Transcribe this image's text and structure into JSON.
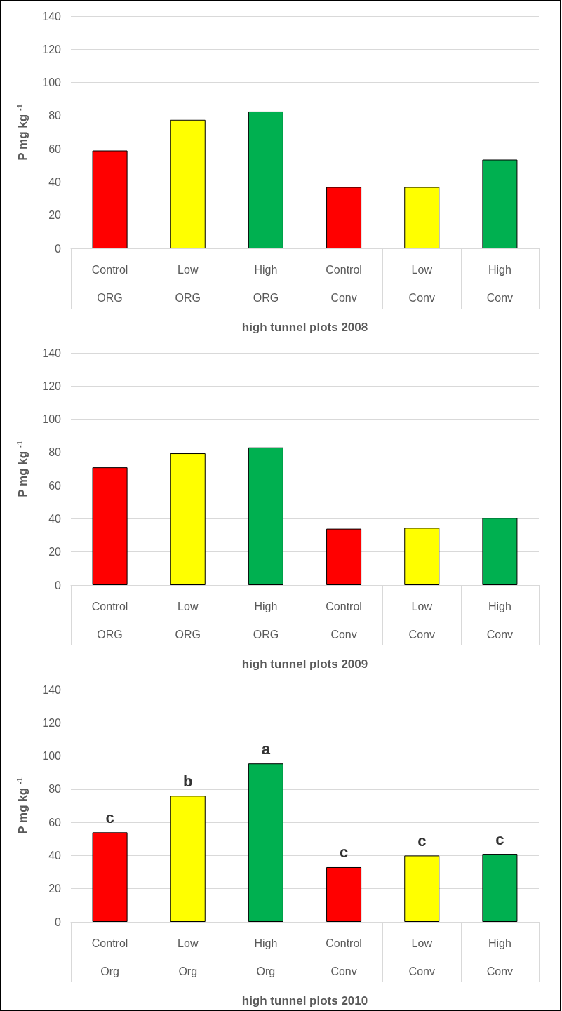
{
  "chart_data": [
    {
      "type": "bar",
      "xlabel": "high tunnel plots 2008",
      "ylabel": "P mg kg$^{-1}$",
      "categories": [
        "Control\nORG",
        "Low\nORG",
        "High\nORG",
        "Control\nConv",
        "Low\nConv",
        "High\nConv"
      ],
      "values": [
        59,
        77.5,
        82.5,
        37,
        37,
        53.5
      ],
      "colors": [
        "#ff0000",
        "#ffff00",
        "#00b050",
        "#ff0000",
        "#ffff00",
        "#00b050"
      ],
      "ylim": [
        0,
        140
      ],
      "yticks": [
        0,
        20,
        40,
        60,
        80,
        100,
        120,
        140
      ],
      "grid": "y"
    },
    {
      "type": "bar",
      "xlabel": "high tunnel plots 2009",
      "ylabel": "P mg kg$^{-1}$",
      "categories": [
        "Control\nORG",
        "Low\nORG",
        "High\nORG",
        "Control\nConv",
        "Low\nConv",
        "High\nConv"
      ],
      "values": [
        71,
        79.5,
        83,
        34,
        34.5,
        40.5
      ],
      "colors": [
        "#ff0000",
        "#ffff00",
        "#00b050",
        "#ff0000",
        "#ffff00",
        "#00b050"
      ],
      "ylim": [
        0,
        140
      ],
      "yticks": [
        0,
        20,
        40,
        60,
        80,
        100,
        120,
        140
      ],
      "grid": "y"
    },
    {
      "type": "bar",
      "xlabel": "high tunnel plots 2010",
      "ylabel": "P mg kg$^{-1}$",
      "categories": [
        "Control\nOrg",
        "Low\nOrg",
        "High\nOrg",
        "Control\nConv",
        "Low\nConv",
        "High\nConv"
      ],
      "values": [
        54,
        76,
        95.5,
        33,
        40,
        41
      ],
      "colors": [
        "#ff0000",
        "#ffff00",
        "#00b050",
        "#ff0000",
        "#ffff00",
        "#00b050"
      ],
      "ylim": [
        0,
        140
      ],
      "yticks": [
        0,
        20,
        40,
        60,
        80,
        100,
        120,
        140
      ],
      "grid": "y",
      "annotations": [
        {
          "text": "c",
          "x": "Control\nOrg",
          "y": 54
        },
        {
          "text": "b",
          "x": "Low\nOrg",
          "y": 76
        },
        {
          "text": "a",
          "x": "High\nOrg",
          "y": 95.5
        },
        {
          "text": "c",
          "x": "Control\nConv",
          "y": 33
        },
        {
          "text": "c",
          "x": "Low\nConv",
          "y": 40
        },
        {
          "text": "c",
          "x": "High\nConv",
          "y": 41
        }
      ]
    }
  ]
}
